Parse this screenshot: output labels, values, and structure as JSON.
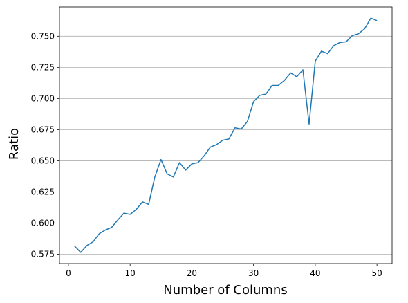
{
  "chart_data": {
    "type": "line",
    "title": "",
    "xlabel": "Number of Columns",
    "ylabel": "Ratio",
    "xlim": [
      -1.45,
      52.45
    ],
    "ylim": [
      0.5675,
      0.7735
    ],
    "x_ticks": [
      0,
      10,
      20,
      30,
      40,
      50
    ],
    "y_ticks": [
      0.575,
      0.6,
      0.625,
      0.65,
      0.675,
      0.7,
      0.725,
      0.75
    ],
    "y_tick_labels": [
      "0.575",
      "0.600",
      "0.625",
      "0.650",
      "0.675",
      "0.700",
      "0.725",
      "0.750"
    ],
    "grid": "horizontal",
    "legend": "none",
    "color": "#1f77b4",
    "series": [
      {
        "x": [
          1,
          2,
          3,
          4,
          5,
          6,
          7,
          8,
          9,
          10,
          11,
          12,
          13,
          14,
          15,
          16,
          17,
          18,
          19,
          20,
          21,
          22,
          23,
          24,
          25,
          26,
          27,
          28,
          29,
          30,
          31,
          32,
          33,
          34,
          35,
          36,
          37,
          38,
          39,
          40,
          41,
          42,
          43,
          44,
          45,
          46,
          47,
          48,
          49,
          50
        ],
        "values": [
          0.5815,
          0.5765,
          0.582,
          0.585,
          0.5915,
          0.5945,
          0.5965,
          0.6025,
          0.608,
          0.607,
          0.611,
          0.617,
          0.615,
          0.637,
          0.651,
          0.6395,
          0.637,
          0.6485,
          0.6425,
          0.6475,
          0.6485,
          0.654,
          0.661,
          0.663,
          0.6665,
          0.6675,
          0.6765,
          0.6755,
          0.6815,
          0.6975,
          0.7025,
          0.7035,
          0.7105,
          0.7105,
          0.7145,
          0.7205,
          0.7175,
          0.723,
          0.6795,
          0.73,
          0.738,
          0.736,
          0.7425,
          0.745,
          0.7455,
          0.7505,
          0.752,
          0.756,
          0.7645,
          0.7625
        ]
      }
    ]
  }
}
